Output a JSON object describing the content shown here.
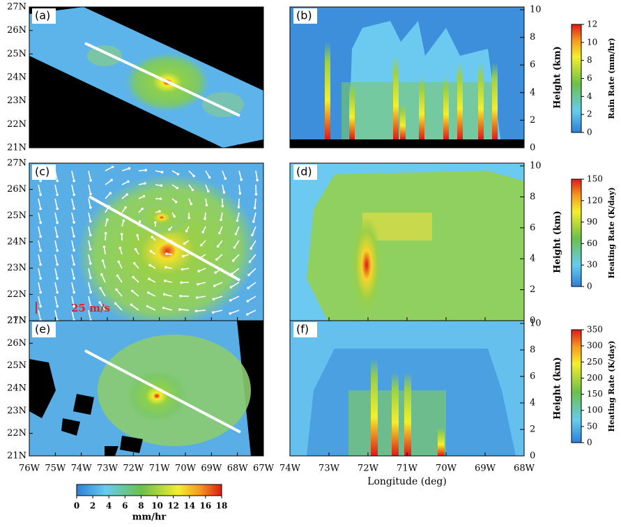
{
  "panels": [
    {
      "label": "(a)"
    },
    {
      "label": "(b)"
    },
    {
      "label": "(c)"
    },
    {
      "label": "(d)"
    },
    {
      "label": "(e)"
    },
    {
      "label": "(f)"
    }
  ],
  "lat_ticks": [
    "27N",
    "26N",
    "25N",
    "24N",
    "23N",
    "22N",
    "21N"
  ],
  "lon_ticks_left": [
    "76W",
    "75W",
    "74W",
    "73W",
    "72W",
    "71W",
    "70W",
    "69W",
    "68W",
    "67W"
  ],
  "lon_ticks_right": [
    "74W",
    "73W",
    "72W",
    "71W",
    "70W",
    "69W",
    "68W"
  ],
  "x_label_right": "Longitude (deg)",
  "height_label": "Height (km)",
  "height_ticks": [
    0,
    2,
    4,
    6,
    8,
    10
  ],
  "colorbars": [
    {
      "label": "Rain Rate (mm/hr)",
      "ticks": [
        0,
        2,
        4,
        6,
        8,
        10,
        12
      ]
    },
    {
      "label": "Heating Rate (K/day)",
      "ticks": [
        0,
        30,
        60,
        90,
        120,
        150
      ]
    },
    {
      "label": "Heating Rate (K/day)",
      "ticks": [
        0,
        50,
        100,
        150,
        200,
        250,
        300,
        350
      ]
    }
  ],
  "bottom_colorbar": {
    "label": "mm/hr",
    "ticks": [
      0,
      2,
      4,
      6,
      8,
      10,
      12,
      14,
      16,
      18
    ]
  },
  "wind_scale": "25 m/s"
}
